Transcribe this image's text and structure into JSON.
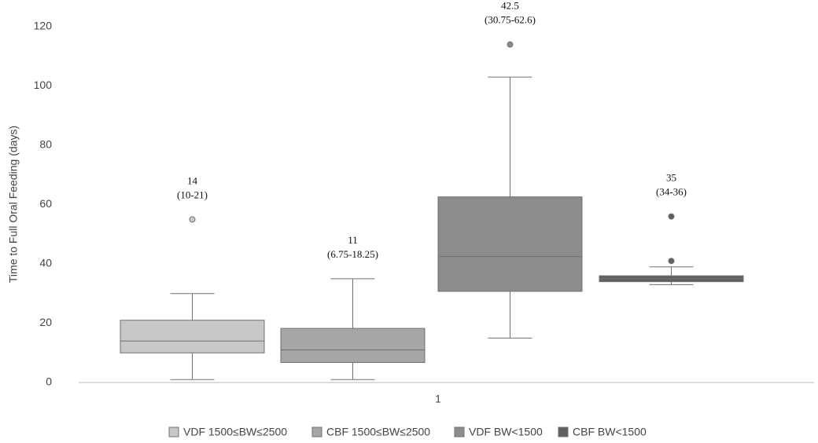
{
  "chart_data": {
    "type": "box",
    "y_label": "Time to Full Oral Feeding (days)",
    "categories": [
      "1"
    ],
    "ylim": [
      0,
      120
    ],
    "yticks": [
      0,
      20,
      40,
      60,
      80,
      100,
      120
    ],
    "series": [
      {
        "name": "VDF 1500≤BW≤2500",
        "color": "#c8c8c8",
        "whisker_low": 1,
        "q1": 10,
        "median": 14,
        "q3": 21,
        "whisker_high": 30,
        "outliers": [
          55
        ],
        "annotation": [
          "14",
          "(10-21)"
        ]
      },
      {
        "name": "CBF 1500≤BW≤2500",
        "color": "#a6a6a6",
        "whisker_low": 1,
        "q1": 6.75,
        "median": 11,
        "q3": 18.25,
        "whisker_high": 35,
        "outliers": [],
        "annotation": [
          "11",
          "(6.75-18.25)"
        ]
      },
      {
        "name": "VDF BW<1500",
        "color": "#8c8c8c",
        "whisker_low": 15,
        "q1": 30.75,
        "median": 42.5,
        "q3": 62.6,
        "whisker_high": 103,
        "outliers": [
          114
        ],
        "annotation": [
          "42.5",
          "(30.75-62.6)"
        ]
      },
      {
        "name": "CBF BW<1500",
        "color": "#606060",
        "whisker_low": 33,
        "q1": 34,
        "median": 35,
        "q3": 36,
        "whisker_high": 39,
        "outliers": [
          41,
          56
        ],
        "annotation": [
          "35",
          "(34-36)"
        ]
      }
    ]
  }
}
